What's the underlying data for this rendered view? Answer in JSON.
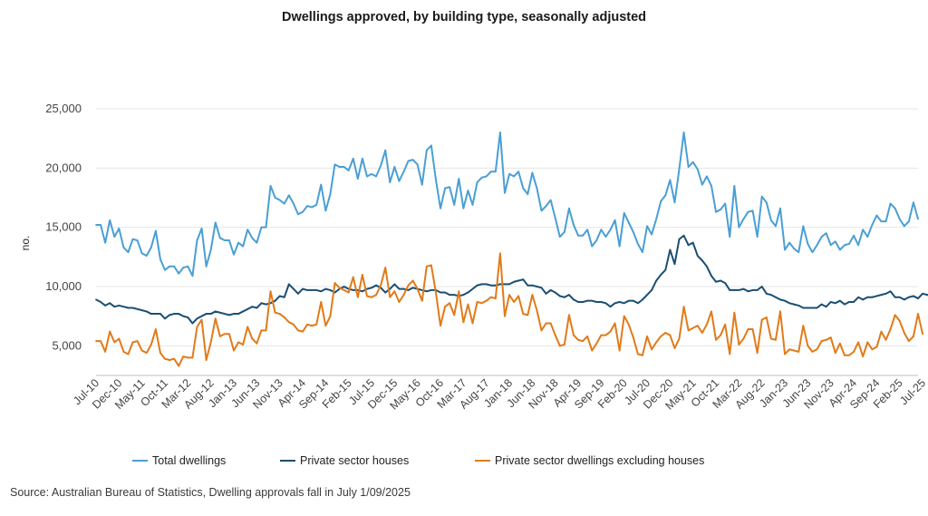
{
  "title": "Dwellings approved, by building type, seasonally adjusted",
  "source": "Source: Australian Bureau of Statistics, Dwelling approvals fall in July 1/09/2025",
  "chart_data": {
    "type": "line",
    "ylabel": "no.",
    "xlabel": "",
    "ylim": [
      2500,
      25000
    ],
    "yticks": [
      5000,
      10000,
      15000,
      20000,
      25000
    ],
    "ytick_labels": [
      "5,000",
      "10,000",
      "15,000",
      "20,000",
      "25,000"
    ],
    "x_start": "Jul-10",
    "x_end": "Jul-25",
    "xtick_labels": [
      "Jul-10",
      "Dec-10",
      "May-11",
      "Oct-11",
      "Mar-12",
      "Aug-12",
      "Jan-13",
      "Jun-13",
      "Nov-13",
      "Apr-14",
      "Sep-14",
      "Feb-15",
      "Jul-15",
      "Dec-15",
      "May-16",
      "Oct-16",
      "Mar-17",
      "Aug-17",
      "Jan-18",
      "Jun-18",
      "Nov-18",
      "Apr-19",
      "Sep-19",
      "Feb-20",
      "Jul-20",
      "Dec-20",
      "May-21",
      "Oct-21",
      "Mar-22",
      "Aug-22",
      "Jan-23",
      "Jun-23",
      "Nov-23",
      "Apr-24",
      "Sep-24",
      "Feb-25",
      "Jul-25"
    ],
    "grid": "horizontal",
    "legend_position": "bottom",
    "series": [
      {
        "name": "Total dwellings",
        "color": "#4a9fd4",
        "values": [
          15200,
          15200,
          13700,
          15600,
          14200,
          14900,
          13300,
          12900,
          14000,
          13900,
          12800,
          12600,
          13300,
          14700,
          12300,
          11400,
          11700,
          11700,
          11100,
          11600,
          11700,
          10900,
          13900,
          14900,
          11700,
          13100,
          15400,
          14100,
          13900,
          13900,
          12700,
          13700,
          13400,
          14800,
          14100,
          13700,
          15000,
          15000,
          18500,
          17500,
          17300,
          17000,
          17700,
          17000,
          16100,
          16300,
          16800,
          16700,
          16900,
          18600,
          16400,
          17800,
          20300,
          20100,
          20100,
          19800,
          20800,
          19100,
          20800,
          19300,
          19500,
          19300,
          20200,
          21500,
          18800,
          20100,
          18900,
          19700,
          20600,
          20700,
          20300,
          18600,
          21500,
          21900,
          19000,
          16600,
          18300,
          18400,
          16900,
          19100,
          16600,
          18100,
          16900,
          18800,
          19200,
          19300,
          19700,
          19700,
          23000,
          17900,
          19500,
          19300,
          19700,
          18300,
          17800,
          19600,
          18300,
          16400,
          16800,
          17300,
          15800,
          14200,
          14600,
          16600,
          15200,
          14300,
          14300,
          14800,
          13400,
          13900,
          14800,
          14200,
          14800,
          15600,
          13400,
          16200,
          15400,
          14600,
          13600,
          12900,
          15100,
          14400,
          15700,
          17200,
          17700,
          19000,
          17100,
          19900,
          23000,
          20100,
          20500,
          19900,
          18600,
          19300,
          18500,
          16300,
          16500,
          17000,
          14200,
          18500,
          15000,
          15700,
          16300,
          16400,
          14200,
          17600,
          17100,
          15600,
          15100,
          16600,
          13100,
          13700,
          13200,
          12900,
          15100,
          13600,
          12900,
          13500,
          14200,
          14500,
          13500,
          13800,
          13100,
          13500,
          13600,
          14300,
          13500,
          14800,
          14200,
          15200,
          16000,
          15500,
          15500,
          17000,
          16600,
          15700,
          15100,
          15500,
          17100,
          15700
        ]
      },
      {
        "name": "Private sector houses",
        "color": "#1b4f72",
        "values": [
          8900,
          8700,
          8400,
          8600,
          8300,
          8400,
          8300,
          8200,
          8200,
          8100,
          8000,
          7900,
          7700,
          7700,
          7700,
          7300,
          7600,
          7700,
          7700,
          7500,
          7400,
          6900,
          7300,
          7500,
          7700,
          7700,
          7900,
          7800,
          7700,
          7600,
          7700,
          7700,
          7900,
          8100,
          8300,
          8200,
          8600,
          8500,
          8600,
          8800,
          9200,
          9100,
          10200,
          9800,
          9400,
          9800,
          9700,
          9700,
          9700,
          9600,
          9800,
          9700,
          9500,
          9800,
          10000,
          9800,
          9700,
          9700,
          9600,
          9800,
          9900,
          10100,
          9900,
          9500,
          9800,
          10200,
          9800,
          9800,
          9700,
          9900,
          9800,
          9700,
          9600,
          9700,
          9700,
          9500,
          9500,
          9300,
          9300,
          9200,
          9300,
          9500,
          9800,
          10100,
          10200,
          10200,
          10100,
          10100,
          10200,
          10200,
          10200,
          10400,
          10500,
          10600,
          10100,
          10100,
          10000,
          9900,
          9400,
          9700,
          9500,
          9200,
          9100,
          9300,
          8900,
          8700,
          8700,
          8800,
          8800,
          8700,
          8700,
          8600,
          8300,
          8600,
          8700,
          8600,
          8800,
          8800,
          8600,
          8900,
          9300,
          9700,
          10500,
          11000,
          11400,
          13100,
          11900,
          14000,
          14300,
          13500,
          13700,
          12600,
          12200,
          11700,
          10900,
          10400,
          10500,
          10300,
          9700,
          9700,
          9700,
          9800,
          9600,
          9700,
          9700,
          10000,
          9400,
          9300,
          9100,
          8900,
          8800,
          8600,
          8500,
          8400,
          8200,
          8200,
          8200,
          8200,
          8500,
          8300,
          8700,
          8600,
          8800,
          8500,
          8700,
          8700,
          9100,
          8900,
          9100,
          9100,
          9200,
          9300,
          9400,
          9600,
          9100,
          9100,
          8900,
          9100,
          9200,
          9000,
          9400,
          9300,
          9200,
          9300
        ]
      },
      {
        "name": "Private sector dwellings excluding houses",
        "color": "#e07b1a",
        "values": [
          5400,
          5400,
          4500,
          6200,
          5300,
          5600,
          4500,
          4300,
          5300,
          5400,
          4600,
          4400,
          5100,
          6400,
          4400,
          3900,
          3800,
          3900,
          3300,
          4100,
          4000,
          4000,
          6600,
          7200,
          3800,
          5300,
          7300,
          5800,
          6000,
          6000,
          4600,
          5300,
          5100,
          6600,
          5600,
          5200,
          6300,
          6300,
          9600,
          7800,
          7700,
          7400,
          7000,
          6800,
          6300,
          6200,
          6800,
          6700,
          6800,
          8700,
          6700,
          7500,
          10300,
          9900,
          9700,
          9500,
          10800,
          9100,
          11000,
          9200,
          9100,
          9300,
          10100,
          11600,
          9100,
          9600,
          8700,
          9300,
          10100,
          10500,
          9800,
          8800,
          11700,
          11800,
          9500,
          6700,
          8300,
          8600,
          7600,
          9600,
          7000,
          8500,
          6900,
          8700,
          8600,
          8800,
          9100,
          9000,
          12800,
          7500,
          9300,
          8700,
          9200,
          7700,
          7600,
          9300,
          8000,
          6300,
          6900,
          6900,
          5900,
          5000,
          5100,
          7600,
          5900,
          5500,
          5400,
          5800,
          4600,
          5200,
          5900,
          5900,
          6200,
          6900,
          4600,
          7500,
          6800,
          5700,
          4300,
          4200,
          5800,
          4700,
          5300,
          5800,
          6100,
          5900,
          4800,
          5600,
          8300,
          6300,
          6500,
          6700,
          6100,
          6800,
          7900,
          5500,
          5900,
          6800,
          4300,
          7800,
          5100,
          5600,
          6400,
          6400,
          4400,
          7200,
          7400,
          5600,
          5500,
          7900,
          4300,
          4700,
          4600,
          4500,
          6700,
          5000,
          4500,
          4700,
          5400,
          5500,
          5700,
          4400,
          5200,
          4200,
          4200,
          4500,
          5300,
          4100,
          5300,
          4700,
          4900,
          6200,
          5500,
          6400,
          7600,
          7100,
          6100,
          5400,
          5800,
          7700,
          6000
        ]
      }
    ]
  }
}
